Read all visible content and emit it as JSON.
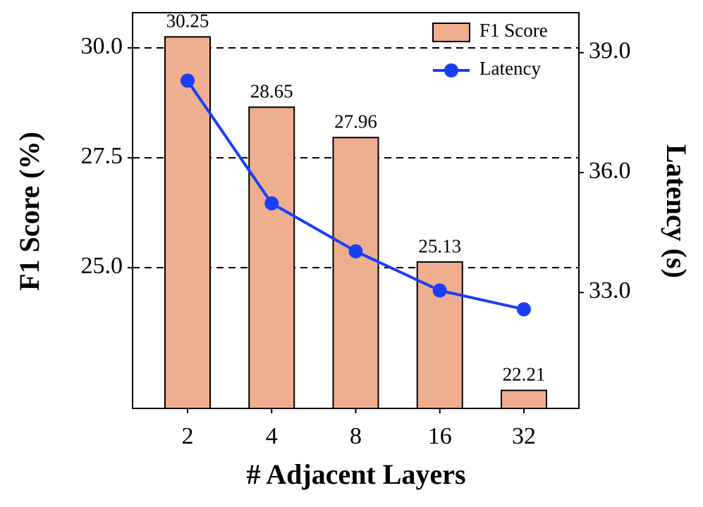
{
  "chart_data": {
    "type": "bar",
    "x_label": "# Adjacent Layers",
    "y_label": "F1 Score (%)",
    "y2_label": "Latency (s)",
    "categories": [
      "2",
      "4",
      "8",
      "16",
      "32"
    ],
    "series": [
      {
        "name": "F1 Score",
        "type": "bar",
        "color": "#eeae8f",
        "values": [
          30.25,
          28.65,
          27.96,
          25.13,
          22.21
        ]
      },
      {
        "name": "Latency",
        "type": "line",
        "axis": "y2",
        "color": "#1a3ef5",
        "values": [
          38.3,
          35.23,
          34.03,
          33.05,
          32.58
        ]
      }
    ],
    "ylim": [
      21.8,
      30.8
    ],
    "yticks": [
      {
        "value": 25,
        "label": "25.0"
      },
      27.5,
      {
        "value": 30,
        "label": "30.0"
      }
    ],
    "y2lim": [
      30.1,
      40.0
    ],
    "y2ticks": [
      {
        "value": 33,
        "label": "33.0"
      },
      {
        "value": 36,
        "label": "36.0"
      },
      {
        "value": 39,
        "label": "39.0"
      }
    ],
    "grid": true,
    "legend": "upper-right"
  }
}
